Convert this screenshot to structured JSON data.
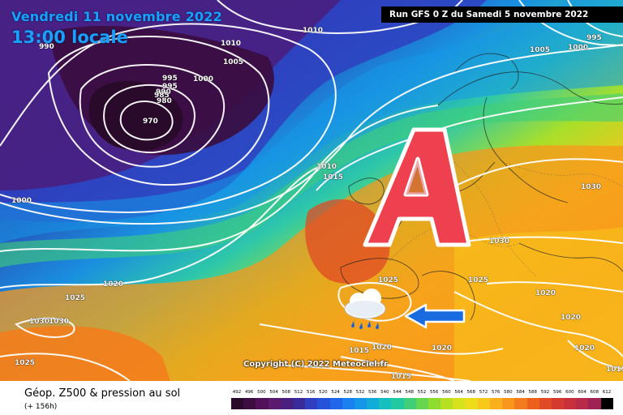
{
  "header": {
    "date": "Vendredi 11 novembre 2022",
    "time": "13:00 locale",
    "run": "Run GFS 0 Z du Samedi 5 novembre 2022"
  },
  "copyright": "Copyright (C) 2022 Meteociel.fr",
  "pressure_labels": [
    "990",
    "1010",
    "1010",
    "995",
    "1005",
    "1000",
    "995",
    "995",
    "990",
    "985",
    "980",
    "970",
    "1010",
    "1015",
    "1000",
    "1000",
    "1005",
    "1030",
    "1030",
    "1020",
    "1025",
    "1030",
    "1030",
    "1025",
    "1025",
    "1025",
    "1020",
    "1020",
    "1020",
    "1015",
    "1020",
    "1015",
    "1015",
    "1020"
  ],
  "symbols": {
    "anticyclone_letter": "A",
    "weather_icon": "cloud-rain-icon",
    "arrow_icon": "arrow-left-icon"
  },
  "legend": {
    "title": "Géop. Z500 & pression au sol",
    "subtitle": "(+ 156h)",
    "scale_values": [
      "492",
      "496",
      "500",
      "504",
      "508",
      "512",
      "516",
      "520",
      "524",
      "528",
      "532",
      "536",
      "540",
      "544",
      "548",
      "552",
      "556",
      "560",
      "564",
      "568",
      "572",
      "576",
      "580",
      "584",
      "588",
      "592",
      "596",
      "600",
      "604",
      "608",
      "612"
    ],
    "scale_colors": [
      "#2a0a2a",
      "#3d0c40",
      "#52105a",
      "#5c1a6e",
      "#4a1f80",
      "#3a2b9a",
      "#2f3fbf",
      "#2452d8",
      "#1e66ea",
      "#1a80f0",
      "#1597e8",
      "#12acd8",
      "#15bfc0",
      "#20c9a0",
      "#3fcf78",
      "#66d64e",
      "#8fdc30",
      "#b6e020",
      "#d8e21c",
      "#eedb1a",
      "#f7c81a",
      "#f9b01c",
      "#f8971c",
      "#f37d1c",
      "#ec601c",
      "#e04a24",
      "#d43a30",
      "#c8303c",
      "#b82a48",
      "#a02254",
      "#000000"
    ]
  }
}
